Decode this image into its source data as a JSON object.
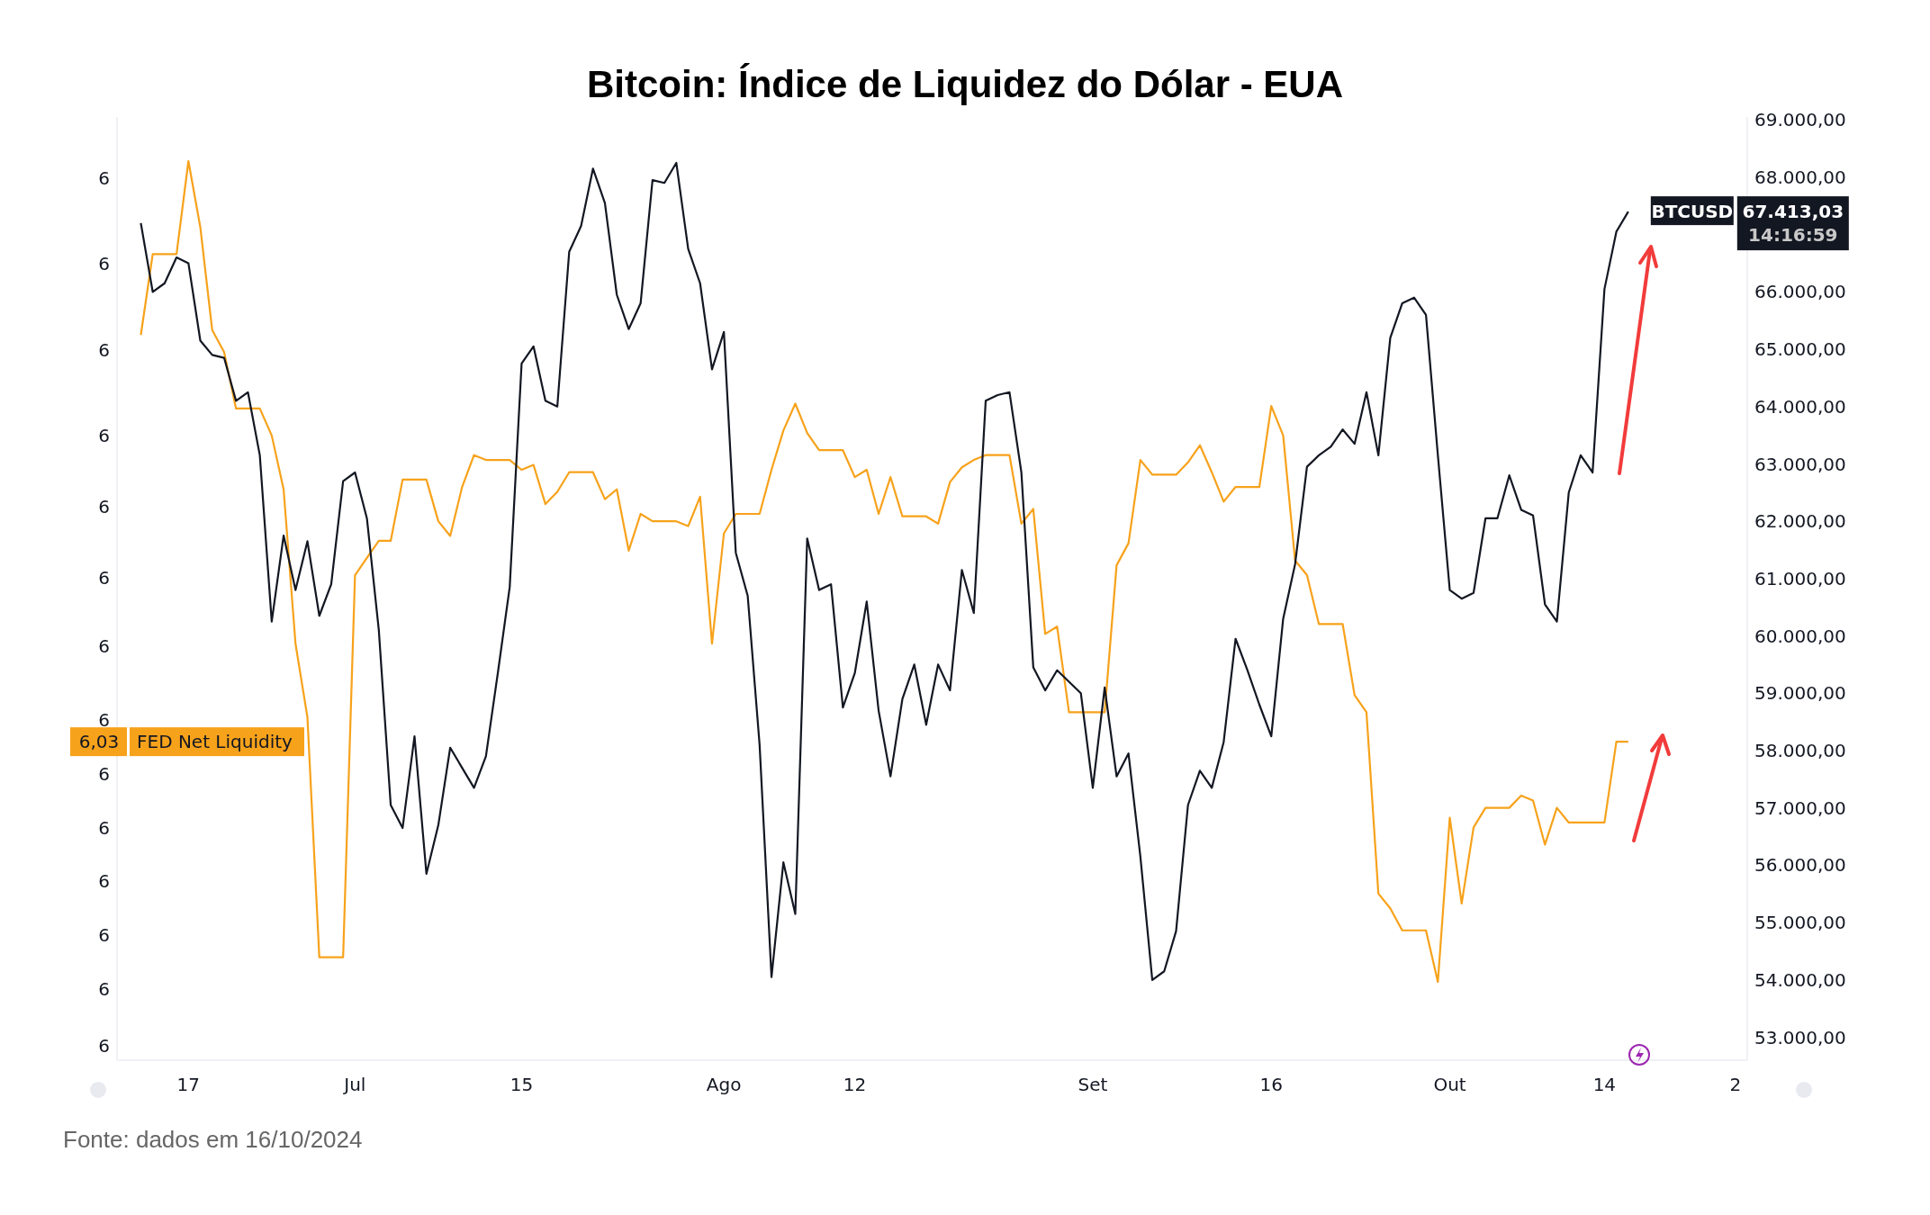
{
  "chart_data": {
    "type": "line",
    "title": "Bitcoin: Índice de Liquidez do Dólar - EUA",
    "annotations": [
      "6,03",
      "67.413,03",
      "14:16:59",
      "Fonte: dados em 16/10/2024"
    ],
    "xlim": [
      "2024-06-11",
      "2024-10-26"
    ],
    "xticks": [
      {
        "value": "2024-06-17",
        "label": "17"
      },
      {
        "value": "2024-07-01",
        "label": "Jul"
      },
      {
        "value": "2024-07-15",
        "label": "15"
      },
      {
        "value": "2024-08-01",
        "label": "Ago"
      },
      {
        "value": "2024-08-12",
        "label": "12"
      },
      {
        "value": "2024-09-01",
        "label": "Set"
      },
      {
        "value": "2024-09-16",
        "label": "16"
      },
      {
        "value": "2024-10-01",
        "label": "Out"
      },
      {
        "value": "2024-10-14",
        "label": "14"
      },
      {
        "value": "2024-10-25",
        "label": "2"
      }
    ],
    "ylim": [
      5.9,
      6.285
    ],
    "yticks": [
      {
        "value": 6.26,
        "label": "6"
      },
      {
        "value": 6.225,
        "label": "6"
      },
      {
        "value": 6.19,
        "label": "6"
      },
      {
        "value": 6.155,
        "label": "6"
      },
      {
        "value": 6.126,
        "label": "6"
      },
      {
        "value": 6.097,
        "label": "6"
      },
      {
        "value": 6.069,
        "label": "6"
      },
      {
        "value": 6.039,
        "label": "6"
      },
      {
        "value": 6.017,
        "label": "6"
      },
      {
        "value": 5.995,
        "label": "6"
      },
      {
        "value": 5.973,
        "label": "6"
      },
      {
        "value": 5.951,
        "label": "6"
      },
      {
        "value": 5.929,
        "label": "6"
      },
      {
        "value": 5.906,
        "label": "6"
      }
    ],
    "y2lim": [
      52600,
      69050
    ],
    "y2ticks": [
      {
        "value": 53000,
        "label": "53.000,00"
      },
      {
        "value": 54000,
        "label": "54.000,00"
      },
      {
        "value": 55000,
        "label": "55.000,00"
      },
      {
        "value": 56000,
        "label": "56.000,00"
      },
      {
        "value": 57000,
        "label": "57.000,00"
      },
      {
        "value": 58000,
        "label": "58.000,00"
      },
      {
        "value": 59000,
        "label": "59.000,00"
      },
      {
        "value": 60000,
        "label": "60.000,00"
      },
      {
        "value": 61000,
        "label": "61.000,00"
      },
      {
        "value": 62000,
        "label": "62.000,00"
      },
      {
        "value": 63000,
        "label": "63.000,00"
      },
      {
        "value": 64000,
        "label": "64.000,00"
      },
      {
        "value": 65000,
        "label": "65.000,00"
      },
      {
        "value": 66000,
        "label": "66.000,00"
      },
      {
        "value": 68000,
        "label": "68.000,00"
      },
      {
        "value": 69000,
        "label": "69.000,00"
      }
    ],
    "legend": "left",
    "marker": "none",
    "line_style": "solid",
    "series": [
      {
        "name": "FED Net Liquidity",
        "color": "#f7a21b",
        "x": [
          "2024-06-13",
          "2024-06-14",
          "2024-06-16",
          "2024-06-17",
          "2024-06-18",
          "2024-06-19",
          "2024-06-20",
          "2024-06-21",
          "2024-06-23",
          "2024-06-24",
          "2024-06-25",
          "2024-06-26",
          "2024-06-27",
          "2024-06-28",
          "2024-06-30",
          "2024-07-01",
          "2024-07-02",
          "2024-07-03",
          "2024-07-04",
          "2024-07-05",
          "2024-07-07",
          "2024-07-08",
          "2024-07-09",
          "2024-07-10",
          "2024-07-11",
          "2024-07-12",
          "2024-07-14",
          "2024-07-15",
          "2024-07-16",
          "2024-07-17",
          "2024-07-18",
          "2024-07-19",
          "2024-07-21",
          "2024-07-22",
          "2024-07-23",
          "2024-07-24",
          "2024-07-25",
          "2024-07-26",
          "2024-07-28",
          "2024-07-29",
          "2024-07-30",
          "2024-07-31",
          "2024-08-01",
          "2024-08-02",
          "2024-08-04",
          "2024-08-05",
          "2024-08-06",
          "2024-08-07",
          "2024-08-08",
          "2024-08-09",
          "2024-08-11",
          "2024-08-12",
          "2024-08-13",
          "2024-08-14",
          "2024-08-15",
          "2024-08-16",
          "2024-08-18",
          "2024-08-19",
          "2024-08-20",
          "2024-08-21",
          "2024-08-22",
          "2024-08-23",
          "2024-08-25",
          "2024-08-26",
          "2024-08-27",
          "2024-08-28",
          "2024-08-29",
          "2024-08-30",
          "2024-09-02",
          "2024-09-03",
          "2024-09-04",
          "2024-09-05",
          "2024-09-06",
          "2024-09-08",
          "2024-09-09",
          "2024-09-10",
          "2024-09-11",
          "2024-09-12",
          "2024-09-13",
          "2024-09-15",
          "2024-09-16",
          "2024-09-17",
          "2024-09-18",
          "2024-09-19",
          "2024-09-20",
          "2024-09-22",
          "2024-09-23",
          "2024-09-24",
          "2024-09-25",
          "2024-09-26",
          "2024-09-27",
          "2024-09-29",
          "2024-09-30",
          "2024-10-01",
          "2024-10-02",
          "2024-10-03",
          "2024-10-04",
          "2024-10-06",
          "2024-10-07",
          "2024-10-08",
          "2024-10-09",
          "2024-10-10",
          "2024-10-11",
          "2024-10-14",
          "2024-10-15",
          "2024-10-16"
        ],
        "values": [
          6.196,
          6.229,
          6.229,
          6.267,
          6.24,
          6.198,
          6.189,
          6.166,
          6.166,
          6.155,
          6.133,
          6.07,
          6.04,
          5.942,
          5.942,
          6.098,
          6.105,
          6.112,
          6.112,
          6.137,
          6.137,
          6.12,
          6.114,
          6.134,
          6.147,
          6.145,
          6.145,
          6.141,
          6.143,
          6.127,
          6.132,
          6.14,
          6.14,
          6.129,
          6.133,
          6.108,
          6.123,
          6.12,
          6.12,
          6.118,
          6.13,
          6.07,
          6.115,
          6.123,
          6.123,
          6.141,
          6.157,
          6.168,
          6.156,
          6.149,
          6.149,
          6.138,
          6.141,
          6.123,
          6.138,
          6.122,
          6.122,
          6.119,
          6.136,
          6.142,
          6.145,
          6.147,
          6.147,
          6.119,
          6.125,
          6.074,
          6.077,
          6.042,
          6.042,
          6.102,
          6.111,
          6.145,
          6.139,
          6.139,
          6.144,
          6.151,
          6.14,
          6.128,
          6.134,
          6.134,
          6.167,
          6.155,
          6.104,
          6.098,
          6.078,
          6.078,
          6.049,
          6.042,
          5.968,
          5.962,
          5.953,
          5.953,
          5.932,
          5.999,
          5.964,
          5.995,
          6.003,
          6.003,
          6.008,
          6.006,
          5.988,
          6.003,
          5.997,
          5.997,
          6.03,
          6.03
        ]
      },
      {
        "name": "BTCUSD",
        "color": "#131722",
        "axis": "y2",
        "x": [
          "2024-06-13",
          "2024-06-14",
          "2024-06-15",
          "2024-06-16",
          "2024-06-17",
          "2024-06-18",
          "2024-06-19",
          "2024-06-20",
          "2024-06-21",
          "2024-06-22",
          "2024-06-23",
          "2024-06-24",
          "2024-06-25",
          "2024-06-26",
          "2024-06-27",
          "2024-06-28",
          "2024-06-29",
          "2024-06-30",
          "2024-07-01",
          "2024-07-02",
          "2024-07-03",
          "2024-07-04",
          "2024-07-05",
          "2024-07-06",
          "2024-07-07",
          "2024-07-08",
          "2024-07-09",
          "2024-07-10",
          "2024-07-11",
          "2024-07-12",
          "2024-07-13",
          "2024-07-14",
          "2024-07-15",
          "2024-07-16",
          "2024-07-17",
          "2024-07-18",
          "2024-07-19",
          "2024-07-20",
          "2024-07-21",
          "2024-07-22",
          "2024-07-23",
          "2024-07-24",
          "2024-07-25",
          "2024-07-26",
          "2024-07-27",
          "2024-07-28",
          "2024-07-29",
          "2024-07-30",
          "2024-07-31",
          "2024-08-01",
          "2024-08-02",
          "2024-08-03",
          "2024-08-04",
          "2024-08-05",
          "2024-08-06",
          "2024-08-07",
          "2024-08-08",
          "2024-08-09",
          "2024-08-10",
          "2024-08-11",
          "2024-08-12",
          "2024-08-13",
          "2024-08-14",
          "2024-08-15",
          "2024-08-16",
          "2024-08-17",
          "2024-08-18",
          "2024-08-19",
          "2024-08-20",
          "2024-08-21",
          "2024-08-22",
          "2024-08-23",
          "2024-08-24",
          "2024-08-25",
          "2024-08-26",
          "2024-08-27",
          "2024-08-28",
          "2024-08-29",
          "2024-08-30",
          "2024-08-31",
          "2024-09-01",
          "2024-09-02",
          "2024-09-03",
          "2024-09-04",
          "2024-09-05",
          "2024-09-06",
          "2024-09-07",
          "2024-09-08",
          "2024-09-09",
          "2024-09-10",
          "2024-09-11",
          "2024-09-12",
          "2024-09-13",
          "2024-09-14",
          "2024-09-15",
          "2024-09-16",
          "2024-09-17",
          "2024-09-18",
          "2024-09-19",
          "2024-09-20",
          "2024-09-21",
          "2024-09-22",
          "2024-09-23",
          "2024-09-24",
          "2024-09-25",
          "2024-09-26",
          "2024-09-27",
          "2024-09-28",
          "2024-09-29",
          "2024-09-30",
          "2024-10-01",
          "2024-10-02",
          "2024-10-03",
          "2024-10-04",
          "2024-10-05",
          "2024-10-06",
          "2024-10-07",
          "2024-10-08",
          "2024-10-09",
          "2024-10-10",
          "2024-10-11",
          "2024-10-12",
          "2024-10-13",
          "2024-10-14",
          "2024-10-15",
          "2024-10-16"
        ],
        "values": [
          67200,
          66000,
          66150,
          66600,
          66500,
          65150,
          64900,
          64850,
          64100,
          64250,
          63150,
          60250,
          61750,
          60800,
          61650,
          60350,
          60900,
          62700,
          62850,
          62050,
          60100,
          57050,
          56650,
          58250,
          55850,
          56700,
          58050,
          57700,
          57350,
          57900,
          59350,
          60850,
          64750,
          65050,
          64100,
          64000,
          66700,
          67150,
          68150,
          67550,
          65950,
          65350,
          65800,
          67950,
          67900,
          68250,
          66750,
          66150,
          64650,
          65300,
          61450,
          60700,
          58100,
          54050,
          56050,
          55150,
          61700,
          60800,
          60900,
          58750,
          59350,
          60600,
          58700,
          57550,
          58900,
          59500,
          58450,
          59500,
          59050,
          61150,
          60400,
          64100,
          64200,
          64250,
          62850,
          59450,
          59050,
          59400,
          59200,
          59000,
          57350,
          59100,
          57550,
          57950,
          56150,
          54000,
          54150,
          54850,
          57050,
          57650,
          57350,
          58150,
          59950,
          59400,
          58800,
          58250,
          60300,
          61250,
          62950,
          63150,
          63300,
          63600,
          63350,
          64250,
          63150,
          65200,
          65800,
          65900,
          65600,
          63150,
          60800,
          60650,
          60750,
          62050,
          62050,
          62800,
          62200,
          62100,
          60550,
          60250,
          62500,
          63150,
          62850,
          66050,
          67050,
          67400
        ]
      }
    ]
  }
}
